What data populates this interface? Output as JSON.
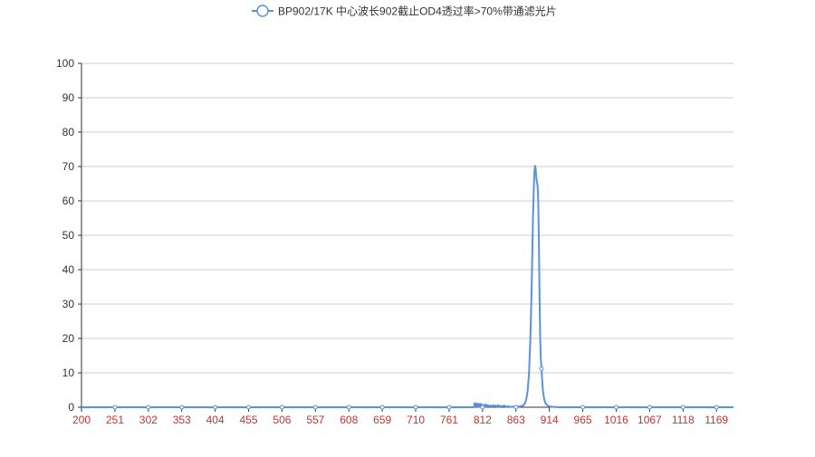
{
  "chart_data": {
    "type": "line",
    "title": "",
    "legend": {
      "position": "top-center",
      "entries": [
        "BP902/17K 中心波长902截止OD4透过率>70%带通滤光片"
      ]
    },
    "series": [
      {
        "name": "BP902/17K 中心波长902截止OD4透过率>70%带通滤光片",
        "color": "#5a92dc",
        "points": [
          [
            200,
            0
          ],
          [
            300,
            0
          ],
          [
            400,
            0
          ],
          [
            500,
            0
          ],
          [
            600,
            0
          ],
          [
            700,
            0
          ],
          [
            790,
            0
          ],
          [
            799,
            0
          ],
          [
            800,
            1.2
          ],
          [
            801,
            0.2
          ],
          [
            802,
            1.0
          ],
          [
            803,
            0.3
          ],
          [
            804,
            1.1
          ],
          [
            805,
            0.2
          ],
          [
            806,
            0.9
          ],
          [
            807,
            0.1
          ],
          [
            808,
            1.0
          ],
          [
            809,
            0.2
          ],
          [
            810,
            0.9
          ],
          [
            811,
            0.3
          ],
          [
            812,
            0.6
          ],
          [
            813,
            0.1
          ],
          [
            814,
            0.7
          ],
          [
            815,
            0.2
          ],
          [
            817,
            0.8
          ],
          [
            818,
            0.1
          ],
          [
            820,
            0.6
          ],
          [
            822,
            0.2
          ],
          [
            824,
            0.5
          ],
          [
            826,
            0.1
          ],
          [
            828,
            0.6
          ],
          [
            830,
            0.2
          ],
          [
            832,
            0.5
          ],
          [
            834,
            0.1
          ],
          [
            836,
            0.6
          ],
          [
            838,
            0.1
          ],
          [
            840,
            0.4
          ],
          [
            842,
            0.2
          ],
          [
            845,
            0.5
          ],
          [
            848,
            0.1
          ],
          [
            850,
            0.3
          ],
          [
            855,
            0.1
          ],
          [
            860,
            0.2
          ],
          [
            865,
            0.1
          ],
          [
            870,
            0.3
          ],
          [
            874,
            0.5
          ],
          [
            877,
            1.2
          ],
          [
            879,
            2.5
          ],
          [
            881,
            5
          ],
          [
            883,
            10
          ],
          [
            885,
            20
          ],
          [
            887,
            35
          ],
          [
            888,
            45
          ],
          [
            889,
            55
          ],
          [
            890,
            62
          ],
          [
            891,
            68
          ],
          [
            892,
            70.2
          ],
          [
            893,
            69.5
          ],
          [
            894,
            67
          ],
          [
            895,
            65.5
          ],
          [
            896,
            64.5
          ],
          [
            897,
            60
          ],
          [
            898,
            48
          ],
          [
            899,
            32
          ],
          [
            900,
            20
          ],
          [
            901,
            14
          ],
          [
            902,
            11.2
          ],
          [
            903,
            8
          ],
          [
            904,
            5
          ],
          [
            906,
            2.5
          ],
          [
            908,
            1.2
          ],
          [
            911,
            0.5
          ],
          [
            915,
            0.2
          ],
          [
            920,
            0.1
          ],
          [
            930,
            0
          ],
          [
            1000,
            0
          ],
          [
            1100,
            0
          ],
          [
            1195,
            0
          ]
        ],
        "markers": [
          [
            251,
            0
          ],
          [
            302,
            0
          ],
          [
            353,
            0
          ],
          [
            404,
            0
          ],
          [
            455,
            0
          ],
          [
            506,
            0
          ],
          [
            557,
            0
          ],
          [
            608,
            0
          ],
          [
            659,
            0
          ],
          [
            710,
            0
          ],
          [
            761,
            0
          ],
          [
            812,
            0
          ],
          [
            863,
            0
          ],
          [
            902,
            11.2
          ],
          [
            965,
            0
          ],
          [
            1016,
            0
          ],
          [
            1067,
            0
          ],
          [
            1118,
            0
          ],
          [
            1169,
            0
          ]
        ]
      }
    ],
    "x_ticks": [
      "200",
      "251",
      "302",
      "353",
      "404",
      "455",
      "506",
      "557",
      "608",
      "659",
      "710",
      "761",
      "812",
      "863",
      "914",
      "965",
      "1016",
      "1067",
      "1118",
      "1169"
    ],
    "xlim": [
      200,
      1195
    ],
    "y_ticks": [
      "0",
      "10",
      "20",
      "30",
      "40",
      "50",
      "60",
      "70",
      "80",
      "90",
      "100"
    ],
    "ylim": [
      0,
      100
    ],
    "grid": {
      "horizontal": true,
      "vertical": false
    },
    "xlabel": "",
    "ylabel": ""
  },
  "colors": {
    "line": "#5a92dc",
    "x_tick_label": "#c23531",
    "y_tick_label": "#333333",
    "gridline": "#cccccc",
    "axis": "#333333",
    "legend_text": "#333333"
  }
}
